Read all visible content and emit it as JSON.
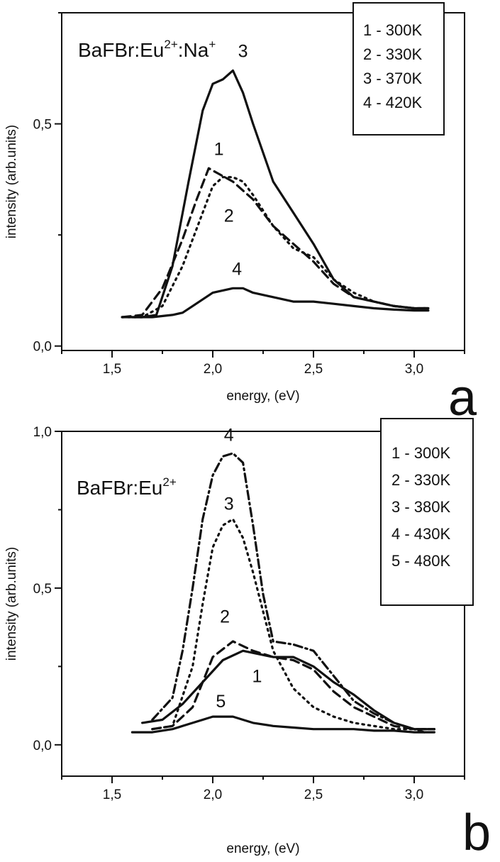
{
  "chart_data": [
    {
      "type": "line",
      "panel_label": "a",
      "title_parts": {
        "base": "BaFBr:Eu",
        "sup1": "2+",
        "mid": ":Na",
        "sup2": "+"
      },
      "xlabel": "energy, (eV)",
      "ylabel": "intensity (arb.units)",
      "xlim": [
        1.25,
        3.25
      ],
      "ylim": [
        -0.01,
        0.75
      ],
      "x_ticks": [
        1.5,
        2.0,
        2.5,
        3.0
      ],
      "x_tick_labels": [
        "1,5",
        "2,0",
        "2,5",
        "3,0"
      ],
      "y_ticks": [
        0.0,
        0.5
      ],
      "y_tick_labels": [
        "0,0",
        "0,5"
      ],
      "legend_position": "top-right",
      "legend": [
        "1 - 300K",
        "2 - 330K",
        "3 - 370K",
        "4 - 420K"
      ],
      "series": [
        {
          "curve_label": "1",
          "style": "dashed",
          "x": [
            1.55,
            1.65,
            1.75,
            1.85,
            1.92,
            1.98,
            2.02,
            2.1,
            2.2,
            2.3,
            2.4,
            2.5,
            2.6,
            2.7,
            2.8,
            2.9,
            3.0,
            3.07
          ],
          "y": [
            0.065,
            0.07,
            0.13,
            0.24,
            0.33,
            0.4,
            0.39,
            0.37,
            0.33,
            0.27,
            0.23,
            0.19,
            0.14,
            0.11,
            0.1,
            0.09,
            0.085,
            0.085
          ],
          "label_at": [
            2.03,
            0.43
          ]
        },
        {
          "curve_label": "2",
          "style": "dotted",
          "x": [
            1.55,
            1.65,
            1.75,
            1.85,
            1.95,
            2.0,
            2.05,
            2.1,
            2.15,
            2.2,
            2.3,
            2.4,
            2.5,
            2.6,
            2.7,
            2.8,
            2.9,
            3.0,
            3.07
          ],
          "y": [
            0.065,
            0.065,
            0.09,
            0.18,
            0.3,
            0.36,
            0.38,
            0.38,
            0.37,
            0.34,
            0.27,
            0.22,
            0.2,
            0.15,
            0.12,
            0.1,
            0.09,
            0.085,
            0.085
          ],
          "label_at": [
            2.08,
            0.28
          ]
        },
        {
          "curve_label": "3",
          "style": "solid",
          "x": [
            1.55,
            1.65,
            1.72,
            1.8,
            1.88,
            1.95,
            2.0,
            2.05,
            2.1,
            2.15,
            2.2,
            2.3,
            2.4,
            2.5,
            2.6,
            2.7,
            2.8,
            2.9,
            3.0,
            3.07
          ],
          "y": [
            0.065,
            0.065,
            0.07,
            0.18,
            0.37,
            0.53,
            0.59,
            0.6,
            0.62,
            0.57,
            0.5,
            0.37,
            0.3,
            0.23,
            0.15,
            0.11,
            0.1,
            0.09,
            0.085,
            0.085
          ],
          "label_at": [
            2.15,
            0.65
          ]
        },
        {
          "curve_label": "4",
          "style": "solid",
          "x": [
            1.6,
            1.7,
            1.8,
            1.85,
            1.9,
            2.0,
            2.1,
            2.15,
            2.2,
            2.3,
            2.4,
            2.5,
            2.6,
            2.7,
            2.8,
            2.9,
            3.0,
            3.07
          ],
          "y": [
            0.065,
            0.065,
            0.07,
            0.075,
            0.09,
            0.12,
            0.13,
            0.13,
            0.12,
            0.11,
            0.1,
            0.1,
            0.095,
            0.09,
            0.085,
            0.082,
            0.08,
            0.08
          ],
          "label_at": [
            2.12,
            0.16
          ]
        }
      ]
    },
    {
      "type": "line",
      "panel_label": "b",
      "title_parts": {
        "base": "BaFBr:Eu",
        "sup1": "2+"
      },
      "xlabel": "energy, (eV)",
      "ylabel": "intensity (arb.units)",
      "xlim": [
        1.25,
        3.25
      ],
      "ylim": [
        -0.1,
        1.0
      ],
      "x_ticks": [
        1.5,
        2.0,
        2.5,
        3.0
      ],
      "x_tick_labels": [
        "1,5",
        "2,0",
        "2,5",
        "3,0"
      ],
      "y_ticks": [
        0.0,
        0.5,
        1.0
      ],
      "y_tick_labels": [
        "0,0",
        "0,5",
        "1,0"
      ],
      "legend_position": "top-right",
      "legend": [
        "1 - 300K",
        "2 - 330K",
        "3 - 380K",
        "4 - 430K",
        "5 - 480K"
      ],
      "series": [
        {
          "curve_label": "1",
          "style": "solid",
          "x": [
            1.65,
            1.75,
            1.85,
            1.95,
            2.05,
            2.15,
            2.3,
            2.4,
            2.5,
            2.6,
            2.7,
            2.8,
            2.9,
            3.0,
            3.1
          ],
          "y": [
            0.07,
            0.08,
            0.13,
            0.2,
            0.27,
            0.3,
            0.28,
            0.28,
            0.25,
            0.2,
            0.16,
            0.11,
            0.07,
            0.05,
            0.05
          ],
          "label_at": [
            2.22,
            0.2
          ]
        },
        {
          "curve_label": "2",
          "style": "dashed",
          "x": [
            1.7,
            1.8,
            1.9,
            2.0,
            2.1,
            2.2,
            2.3,
            2.4,
            2.5,
            2.6,
            2.7,
            2.8,
            2.9,
            3.0,
            3.1
          ],
          "y": [
            0.05,
            0.06,
            0.12,
            0.28,
            0.33,
            0.3,
            0.28,
            0.27,
            0.24,
            0.17,
            0.12,
            0.09,
            0.06,
            0.05,
            0.05
          ],
          "label_at": [
            2.06,
            0.39
          ]
        },
        {
          "curve_label": "3",
          "style": "dotted",
          "x": [
            1.7,
            1.8,
            1.9,
            1.95,
            2.0,
            2.05,
            2.1,
            2.15,
            2.2,
            2.3,
            2.4,
            2.5,
            2.6,
            2.7,
            2.8,
            2.9,
            3.0,
            3.1
          ],
          "y": [
            0.05,
            0.06,
            0.25,
            0.45,
            0.63,
            0.7,
            0.72,
            0.66,
            0.55,
            0.3,
            0.18,
            0.12,
            0.09,
            0.07,
            0.06,
            0.05,
            0.05,
            0.05
          ],
          "label_at": [
            2.08,
            0.75
          ]
        },
        {
          "curve_label": "4",
          "style": "dashdot",
          "x": [
            1.7,
            1.8,
            1.85,
            1.9,
            1.95,
            2.0,
            2.05,
            2.1,
            2.15,
            2.2,
            2.25,
            2.3,
            2.4,
            2.5,
            2.6,
            2.7,
            2.8,
            2.9,
            3.0,
            3.05
          ],
          "y": [
            0.08,
            0.15,
            0.3,
            0.5,
            0.72,
            0.86,
            0.92,
            0.93,
            0.9,
            0.7,
            0.48,
            0.33,
            0.32,
            0.3,
            0.22,
            0.14,
            0.1,
            0.07,
            0.05,
            0.04
          ],
          "label_at": [
            2.08,
            0.97
          ]
        },
        {
          "curve_label": "5",
          "style": "solid",
          "x": [
            1.6,
            1.7,
            1.8,
            1.9,
            2.0,
            2.1,
            2.15,
            2.2,
            2.3,
            2.4,
            2.5,
            2.6,
            2.7,
            2.8,
            2.9,
            3.0,
            3.1
          ],
          "y": [
            0.04,
            0.04,
            0.05,
            0.07,
            0.09,
            0.09,
            0.08,
            0.07,
            0.06,
            0.055,
            0.05,
            0.05,
            0.05,
            0.045,
            0.045,
            0.04,
            0.04
          ],
          "label_at": [
            2.04,
            0.12
          ]
        }
      ]
    }
  ]
}
